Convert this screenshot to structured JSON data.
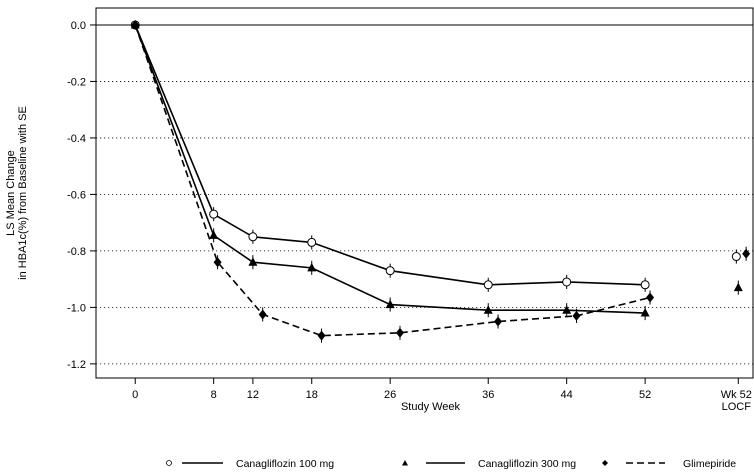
{
  "chart_data": {
    "type": "line",
    "title": "",
    "xlabel": "Study Week",
    "ylabel_lines": [
      "LS Mean Change",
      "in HBA1c(%) from Baseline with SE"
    ],
    "ylim": [
      -1.25,
      0.06
    ],
    "yticks": [
      0.0,
      -0.2,
      -0.4,
      -0.6,
      -0.8,
      -1.0,
      -1.2
    ],
    "ytick_labels": [
      "0.0",
      "-0.2",
      "-0.4",
      "-0.6",
      "-0.8",
      "-1.0",
      "-1.2"
    ],
    "xlim": [
      -4,
      63
    ],
    "xticks": [
      0,
      8,
      12,
      18,
      26,
      36,
      44,
      52
    ],
    "xtick_labels": [
      "0",
      "8",
      "12",
      "18",
      "26",
      "36",
      "44",
      "52"
    ],
    "extra_xtick": {
      "week": 61.5,
      "label_lines": [
        "Wk 52",
        "LOCF"
      ]
    },
    "grid": "horizontal-dotted",
    "legend_position": "bottom",
    "series": [
      {
        "name": "Canagliflozin 100 mg",
        "marker": "circle-open",
        "dash": "solid",
        "x": [
          0,
          8,
          12,
          18,
          26,
          36,
          44,
          52
        ],
        "y": [
          0.0,
          -0.67,
          -0.75,
          -0.77,
          -0.87,
          -0.92,
          -0.91,
          -0.92
        ],
        "se": [
          0.0,
          0.025,
          0.025,
          0.025,
          0.025,
          0.025,
          0.025,
          0.025
        ],
        "locf": {
          "x": 61.3,
          "y": -0.82,
          "se": 0.025
        }
      },
      {
        "name": "Canagliflozin 300 mg",
        "marker": "triangle",
        "dash": "solid",
        "x": [
          0,
          8,
          12,
          18,
          26,
          36,
          44,
          52
        ],
        "y": [
          0.0,
          -0.745,
          -0.84,
          -0.86,
          -0.99,
          -1.01,
          -1.01,
          -1.02
        ],
        "se": [
          0.0,
          0.025,
          0.025,
          0.025,
          0.025,
          0.025,
          0.025,
          0.025
        ],
        "locf": {
          "x": 61.5,
          "y": -0.93,
          "se": 0.025
        }
      },
      {
        "name": "Glimepiride",
        "marker": "diamond",
        "dash": "dashed",
        "x": [
          0,
          8.4,
          13,
          19,
          27,
          37,
          45,
          52.5
        ],
        "y": [
          0.0,
          -0.84,
          -1.025,
          -1.1,
          -1.09,
          -1.05,
          -1.03,
          -0.965
        ],
        "se": [
          0.0,
          0.025,
          0.025,
          0.025,
          0.025,
          0.025,
          0.025,
          0.025
        ],
        "locf": {
          "x": 62.3,
          "y": -0.81,
          "se": 0.025
        }
      }
    ]
  }
}
